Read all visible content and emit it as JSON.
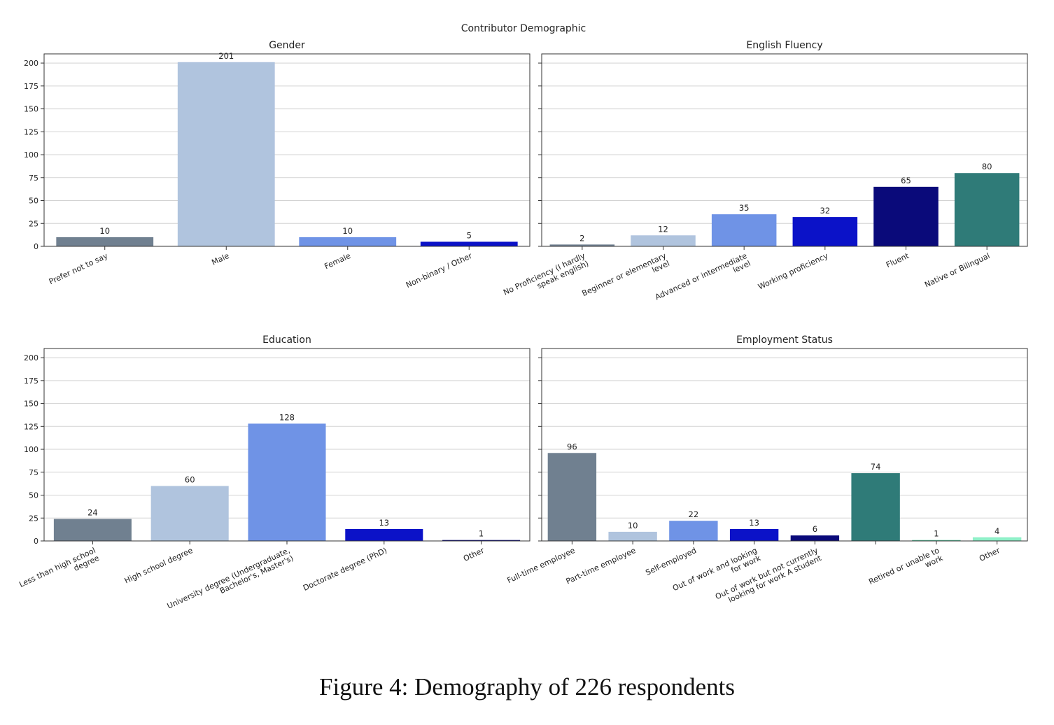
{
  "figure": {
    "suptitle": "Contributor Demographic",
    "caption": "Figure 4: Demography of 226 respondents"
  },
  "chart_data": [
    {
      "type": "bar",
      "title": "Gender",
      "categories": [
        "Prefer not to say",
        "Male",
        "Female",
        "Non-binary / Other"
      ],
      "values": [
        10,
        201,
        10,
        5
      ],
      "colors": [
        "#708090",
        "#b0c4de",
        "#6f93e6",
        "#0b12c8"
      ],
      "ylim": [
        0,
        210
      ],
      "yticks": [
        0,
        25,
        50,
        75,
        100,
        125,
        150,
        175,
        200
      ],
      "grid": "horizontal",
      "xlabel": "",
      "ylabel": ""
    },
    {
      "type": "bar",
      "title": "English Fluency",
      "categories": [
        "No Proficiency (I hardly\nspeak english)",
        "Beginner or elementary\nlevel",
        "Advanced or intermediate\nlevel",
        "Working proficiency",
        "Fluent",
        "Native or Bilingual"
      ],
      "values": [
        2,
        12,
        35,
        32,
        65,
        80
      ],
      "colors": [
        "#708090",
        "#b0c4de",
        "#6f93e6",
        "#0b12c8",
        "#0a0a7a",
        "#2f7b78"
      ],
      "ylim": [
        0,
        210
      ],
      "yticks": [
        0,
        25,
        50,
        75,
        100,
        125,
        150,
        175,
        200
      ],
      "grid": "horizontal",
      "xlabel": "",
      "ylabel": ""
    },
    {
      "type": "bar",
      "title": "Education",
      "categories": [
        "Less than high school\ndegree",
        "High school degree",
        "University degree (Undergraduate,\nBachelor's, Master's)",
        "Doctorate degree (PhD)",
        "Other"
      ],
      "values": [
        24,
        60,
        128,
        13,
        1
      ],
      "colors": [
        "#708090",
        "#b0c4de",
        "#6f93e6",
        "#0b12c8",
        "#0a0a7a"
      ],
      "ylim": [
        0,
        210
      ],
      "yticks": [
        0,
        25,
        50,
        75,
        100,
        125,
        150,
        175,
        200
      ],
      "grid": "horizontal",
      "xlabel": "",
      "ylabel": ""
    },
    {
      "type": "bar",
      "title": "Employment Status",
      "categories": [
        "Full-time employee",
        "Part-time employee",
        "Self-employed",
        "Out of work and looking\nfor work",
        "Out of work but not currently\nlooking for work  A student",
        "",
        "Retired or unable to\nwork",
        "Other"
      ],
      "values": [
        96,
        10,
        22,
        13,
        6,
        74,
        1,
        4
      ],
      "colors": [
        "#708090",
        "#b0c4de",
        "#6f93e6",
        "#0b12c8",
        "#0a0a7a",
        "#2f7b78",
        "#58c7a0",
        "#8ff0c8"
      ],
      "ylim": [
        0,
        210
      ],
      "yticks": [
        0,
        25,
        50,
        75,
        100,
        125,
        150,
        175,
        200
      ],
      "grid": "horizontal",
      "xlabel": "",
      "ylabel": ""
    }
  ]
}
